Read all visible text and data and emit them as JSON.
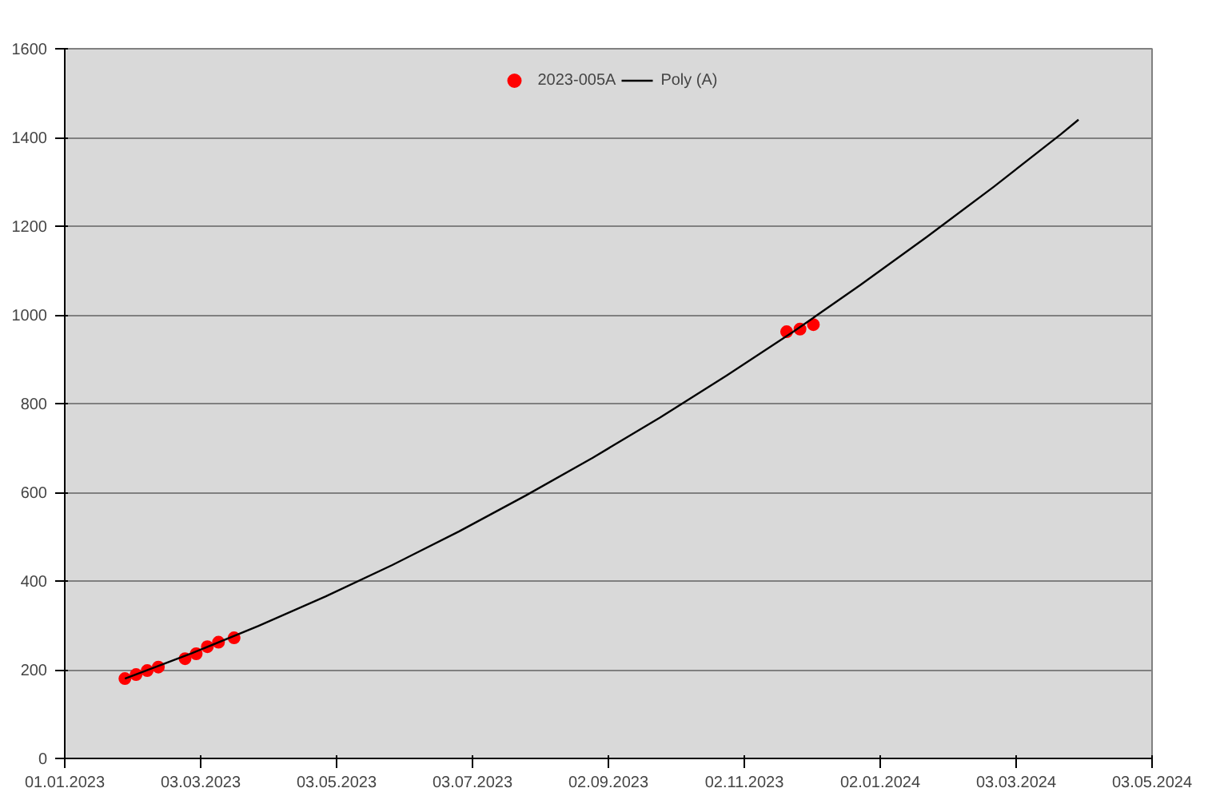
{
  "chart_data": {
    "type": "scatter",
    "xlim": [
      "2023-01-01",
      "2024-05-03"
    ],
    "xticks": [
      {
        "value": "2023-01-01",
        "label": "01.01.2023"
      },
      {
        "value": "2023-03-03",
        "label": "03.03.2023"
      },
      {
        "value": "2023-05-03",
        "label": "03.05.2023"
      },
      {
        "value": "2023-07-03",
        "label": "03.07.2023"
      },
      {
        "value": "2023-09-02",
        "label": "02.09.2023"
      },
      {
        "value": "2023-11-02",
        "label": "02.11.2023"
      },
      {
        "value": "2024-01-02",
        "label": "02.01.2024"
      },
      {
        "value": "2024-03-03",
        "label": "03.03.2024"
      },
      {
        "value": "2024-05-03",
        "label": "03.05.2024"
      }
    ],
    "ylim": [
      0,
      1600
    ],
    "yticks": [
      0,
      200,
      400,
      600,
      800,
      1000,
      1200,
      1400,
      1600
    ],
    "grid": "y",
    "legend": "top",
    "series": [
      {
        "name": "2023-005A",
        "marker": "circle",
        "color": "#ff0000",
        "x": [
          "2023-01-28",
          "2023-02-02",
          "2023-02-07",
          "2023-02-12",
          "2023-02-24",
          "2023-03-01",
          "2023-03-06",
          "2023-03-11",
          "2023-03-18",
          "2023-11-21",
          "2023-11-27",
          "2023-12-03"
        ],
        "values": [
          180,
          189,
          198,
          206,
          225,
          236,
          252,
          262,
          272,
          962,
          968,
          978
        ]
      },
      {
        "name": "Poly (A)",
        "type": "line",
        "marker": "none",
        "line_style": "solid",
        "color": "#000000",
        "x": [
          "2023-01-28",
          "2023-02-27",
          "2023-03-29",
          "2023-04-28",
          "2023-05-28",
          "2023-06-27",
          "2023-07-27",
          "2023-08-26",
          "2023-09-25",
          "2023-10-25",
          "2023-11-24",
          "2023-12-24",
          "2024-01-23",
          "2024-02-22",
          "2024-03-23",
          "2024-03-31"
        ],
        "values": [
          180,
          237,
          299,
          365,
          436,
          512,
          593,
          678,
          768,
          863,
          962,
          1067,
          1176,
          1289,
          1407,
          1440
        ]
      }
    ]
  }
}
